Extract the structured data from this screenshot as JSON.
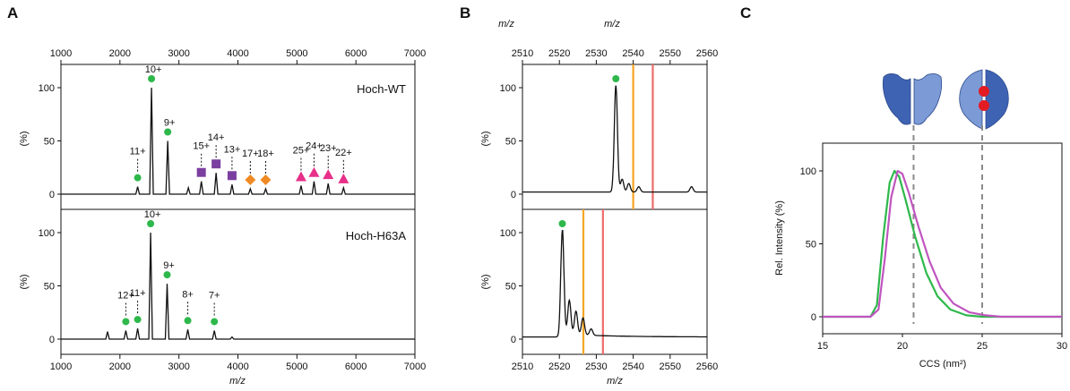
{
  "chart_data": [
    {
      "panel": "A",
      "type": "line",
      "xlabel_top": "m/z",
      "xlabel": "m/z",
      "ylabel": "(%)",
      "xlim": [
        1000,
        7000
      ],
      "xticks": [
        1000,
        2000,
        3000,
        4000,
        5000,
        6000,
        7000
      ],
      "ylim": [
        0,
        120
      ],
      "yticks": [
        0,
        50,
        100
      ],
      "subplots": [
        {
          "name": "Hoch-WT",
          "peaks": [
            {
              "x": 2300,
              "y": 7,
              "label": "11+",
              "marker": "circle",
              "marker_color": "#2eb84b"
            },
            {
              "x": 2535,
              "y": 100,
              "label": "10+",
              "marker": "circle",
              "marker_color": "#2eb84b"
            },
            {
              "x": 2810,
              "y": 50,
              "label": "9+",
              "marker": "circle",
              "marker_color": "#2eb84b"
            },
            {
              "x": 3160,
              "y": 6,
              "label": "",
              "marker": "",
              "marker_color": ""
            },
            {
              "x": 3380,
              "y": 12,
              "label": "15+",
              "marker": "square",
              "marker_color": "#7b3fa0"
            },
            {
              "x": 3630,
              "y": 20,
              "label": "14+",
              "marker": "square",
              "marker_color": "#7b3fa0"
            },
            {
              "x": 3900,
              "y": 9,
              "label": "13+",
              "marker": "square",
              "marker_color": "#7b3fa0"
            },
            {
              "x": 4210,
              "y": 5,
              "label": "17+",
              "marker": "diamond",
              "marker_color": "#f08a24"
            },
            {
              "x": 4470,
              "y": 5,
              "label": "18+",
              "marker": "diamond",
              "marker_color": "#f08a24"
            },
            {
              "x": 5070,
              "y": 8,
              "label": "25+",
              "marker": "triangle",
              "marker_color": "#e8308a"
            },
            {
              "x": 5290,
              "y": 12,
              "label": "24+",
              "marker": "triangle",
              "marker_color": "#e8308a"
            },
            {
              "x": 5530,
              "y": 10,
              "label": "23+",
              "marker": "triangle",
              "marker_color": "#e8308a"
            },
            {
              "x": 5790,
              "y": 6,
              "label": "22+",
              "marker": "triangle",
              "marker_color": "#e8308a"
            }
          ]
        },
        {
          "name": "Hoch-H63A",
          "peaks": [
            {
              "x": 1790,
              "y": 7,
              "label": "",
              "marker": "",
              "marker_color": ""
            },
            {
              "x": 2100,
              "y": 8,
              "label": "12+",
              "marker": "circle",
              "marker_color": "#2eb84b"
            },
            {
              "x": 2300,
              "y": 10,
              "label": "11+",
              "marker": "circle",
              "marker_color": "#2eb84b"
            },
            {
              "x": 2520,
              "y": 100,
              "label": "10+",
              "marker": "circle",
              "marker_color": "#2eb84b"
            },
            {
              "x": 2800,
              "y": 52,
              "label": "9+",
              "marker": "circle",
              "marker_color": "#2eb84b"
            },
            {
              "x": 3150,
              "y": 9,
              "label": "8+",
              "marker": "circle",
              "marker_color": "#2eb84b"
            },
            {
              "x": 3600,
              "y": 8,
              "label": "7+",
              "marker": "circle",
              "marker_color": "#2eb84b"
            },
            {
              "x": 3900,
              "y": 2,
              "label": "",
              "marker": "",
              "marker_color": ""
            }
          ]
        }
      ]
    },
    {
      "panel": "B",
      "type": "line",
      "xlabel_top": "m/z",
      "xlabel": "m/z",
      "ylabel": "(%)",
      "xlim": [
        2510,
        2560
      ],
      "xticks": [
        2510,
        2520,
        2530,
        2540,
        2550,
        2560
      ],
      "ylim": [
        0,
        120
      ],
      "yticks": [
        0,
        50,
        100
      ],
      "subplots": [
        {
          "peaks": [
            {
              "x": 2535.3,
              "y": 100,
              "marker": "circle",
              "marker_color": "#2eb84b"
            },
            {
              "x": 2537.0,
              "y": 12
            },
            {
              "x": 2538.8,
              "y": 8
            },
            {
              "x": 2541.5,
              "y": 5
            },
            {
              "x": 2555.8,
              "y": 5
            }
          ],
          "vlines": [
            {
              "x": 2540,
              "color": "#f5a623"
            },
            {
              "x": 2545.3,
              "color": "#ef6a6a"
            }
          ]
        },
        {
          "peaks": [
            {
              "x": 2520.8,
              "y": 100,
              "marker": "circle",
              "marker_color": "#2eb84b"
            },
            {
              "x": 2522.7,
              "y": 32
            },
            {
              "x": 2524.5,
              "y": 22
            },
            {
              "x": 2526.4,
              "y": 16
            },
            {
              "x": 2528.6,
              "y": 6
            }
          ],
          "vlines": [
            {
              "x": 2526.5,
              "color": "#f5a623"
            },
            {
              "x": 2531.8,
              "color": "#ef6a6a"
            }
          ]
        }
      ]
    },
    {
      "panel": "C",
      "type": "line",
      "xlabel": "CCS (nm²)",
      "ylabel": "Rel. Intensity (%)",
      "xlim": [
        15,
        30
      ],
      "xticks": [
        15,
        20,
        25,
        30
      ],
      "ylim": [
        0,
        110
      ],
      "yticks": [
        0,
        50,
        100
      ],
      "series": [
        {
          "color": "#2eb84b",
          "x": [
            15,
            18,
            18.4,
            18.8,
            19.2,
            19.5,
            19.8,
            20.2,
            20.8,
            21.5,
            22.2,
            23,
            24,
            25,
            26,
            27,
            30
          ],
          "y": [
            0,
            0,
            8,
            55,
            92,
            100,
            96,
            80,
            55,
            30,
            14,
            5,
            1,
            0,
            0,
            0,
            0
          ]
        },
        {
          "color": "#c055c0",
          "x": [
            15,
            18,
            18.5,
            18.9,
            19.3,
            19.7,
            20.0,
            20.4,
            21.0,
            21.7,
            22.4,
            23.2,
            24.2,
            25.2,
            26.2,
            27,
            30
          ],
          "y": [
            0,
            0,
            5,
            40,
            82,
            100,
            98,
            85,
            62,
            38,
            20,
            9,
            3,
            1,
            0,
            0,
            0
          ]
        }
      ],
      "dashed_vlines": [
        20.7,
        25
      ]
    }
  ]
}
